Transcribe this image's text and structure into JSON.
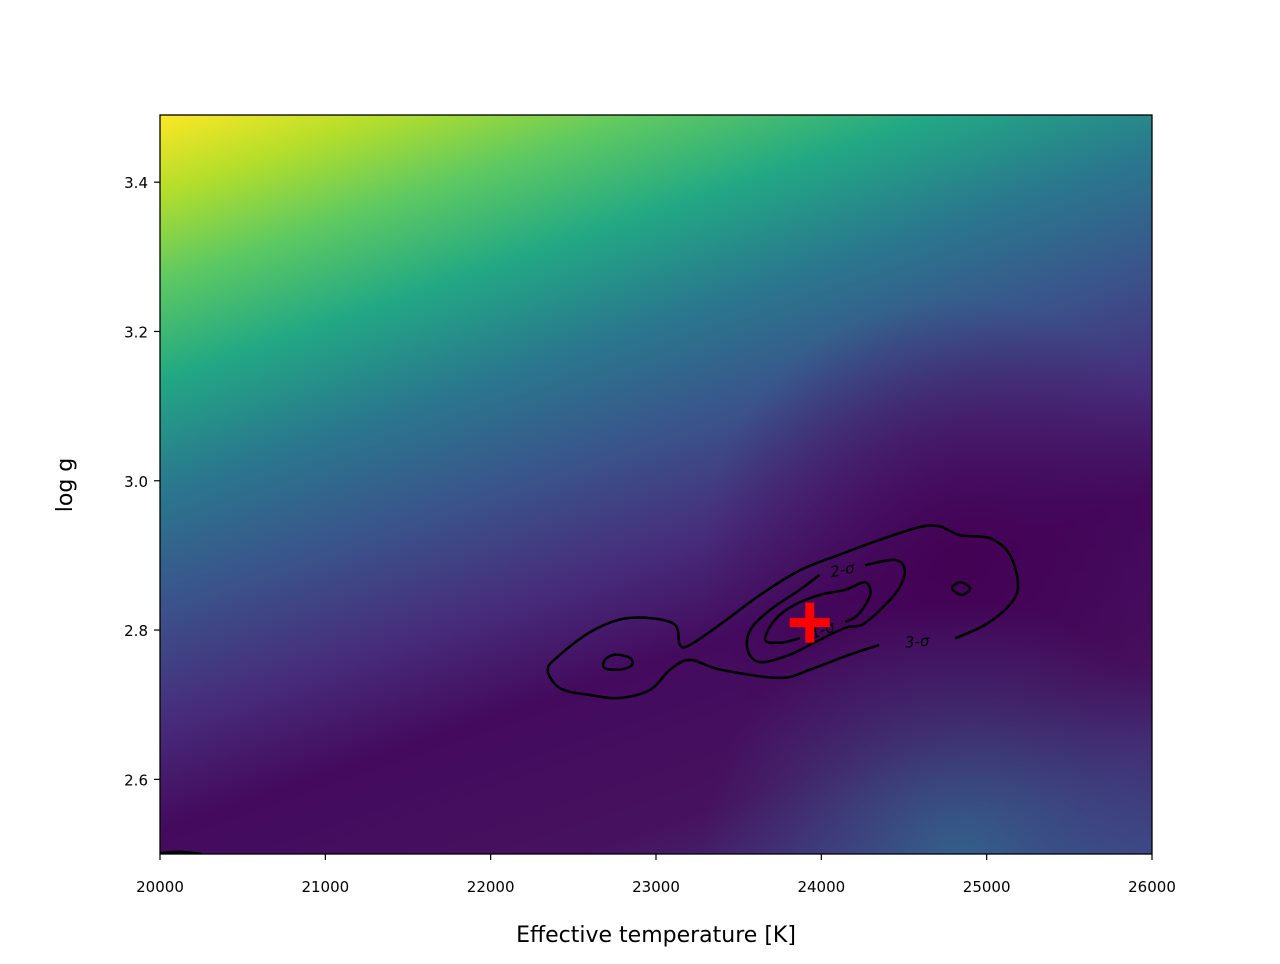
{
  "chart_data": {
    "type": "contour",
    "x_label": "Effective temperature [K]",
    "y_label": "log g",
    "xlim": [
      20000,
      26000
    ],
    "ylim": [
      2.5,
      3.49
    ],
    "xticks": [
      20000,
      21000,
      22000,
      23000,
      24000,
      25000,
      26000
    ],
    "yticks": [
      2.6,
      2.8,
      {
        "value": 3,
        "label": "3.0"
      },
      3.2,
      3.4
    ],
    "contour_color": "#000000",
    "contours": [
      {
        "label": "3-σ",
        "closed": false,
        "x": [
          24350,
          24170,
          23930,
          23750,
          23390,
          23205,
          23085,
          22965,
          22780,
          22600,
          22420,
          22345,
          22420,
          22600,
          22780,
          22965,
          23115,
          23145,
          23205,
          23385,
          23630,
          23870,
          24110,
          24355,
          24595,
          24715,
          24840,
          25020,
          25140,
          25190,
          25140,
          24990,
          24810
        ],
        "y": [
          2.78,
          2.767,
          2.747,
          2.736,
          2.747,
          2.76,
          2.747,
          2.72,
          2.709,
          2.713,
          2.722,
          2.747,
          2.767,
          2.797,
          2.814,
          2.816,
          2.807,
          2.78,
          2.78,
          2.807,
          2.847,
          2.88,
          2.901,
          2.921,
          2.938,
          2.939,
          2.927,
          2.923,
          2.901,
          2.86,
          2.834,
          2.807,
          2.789
        ]
      },
      {
        "label": "2-σ",
        "closed": false,
        "x": [
          24265,
          24445,
          24505,
          24465,
          24355,
          24245,
          24145,
          23990,
          23810,
          23630,
          23555,
          23570,
          23690,
          23870,
          23990
        ],
        "y": [
          2.887,
          2.894,
          2.88,
          2.854,
          2.827,
          2.807,
          2.803,
          2.787,
          2.767,
          2.757,
          2.773,
          2.8,
          2.827,
          2.854,
          2.874
        ]
      },
      {
        "label": "1-σ",
        "closed": false,
        "x": [
          24145,
          24220,
          24295,
          24265,
          24145,
          23990,
          23840,
          23720,
          23660,
          23750,
          23870
        ],
        "y": [
          2.811,
          2.82,
          2.847,
          2.864,
          2.854,
          2.847,
          2.834,
          2.814,
          2.787,
          2.783,
          2.789
        ]
      },
      {
        "closed": true,
        "x": [
          22690,
          22750,
          22840,
          22855,
          22780,
          22690
        ],
        "y": [
          2.76,
          2.767,
          2.763,
          2.753,
          2.747,
          2.749
        ]
      },
      {
        "closed": true,
        "x": [
          24790,
          24840,
          24900,
          24850
        ],
        "y": [
          2.856,
          2.864,
          2.856,
          2.847
        ]
      },
      {
        "closed": false,
        "x": [
          20000,
          20120,
          20250
        ],
        "y": [
          2.501,
          2.503,
          2.5
        ]
      }
    ],
    "marker": {
      "x": 23930,
      "y": 2.81,
      "color": "#ff0000"
    }
  }
}
